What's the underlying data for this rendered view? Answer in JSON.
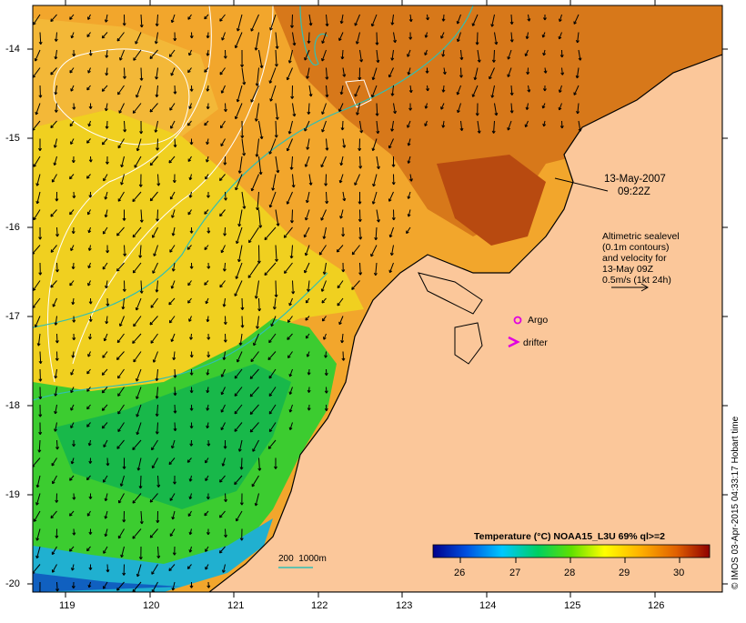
{
  "map": {
    "lat_ticks": [
      "-14",
      "-15",
      "-16",
      "-17",
      "-18",
      "-19",
      "-20"
    ],
    "lon_ticks": [
      "119",
      "120",
      "121",
      "122",
      "123",
      "124",
      "125",
      "126"
    ],
    "timestamp": {
      "date": "13-May-2007",
      "time": "09:22Z"
    },
    "legend_text": [
      "Altimetric sealevel",
      "(0.1m contours)",
      "and velocity for",
      "13-May 09Z",
      "0.5m/s (1kt 24h)"
    ],
    "markers": {
      "argo": "Argo",
      "drifter": "drifter"
    },
    "bathymetry_label": "200  1000m",
    "colorbar": {
      "title": "Temperature (°C) NOAA15_L3U 69% ql>=2",
      "ticks": [
        "26",
        "27",
        "28",
        "29",
        "30"
      ]
    },
    "credit": "© IMOS 03-Apr-2015 04:33:17 Hobart time",
    "colors": {
      "land": "#fbc79a",
      "accent_contour": "#2fbfb4",
      "marker": "#e000e0"
    }
  }
}
